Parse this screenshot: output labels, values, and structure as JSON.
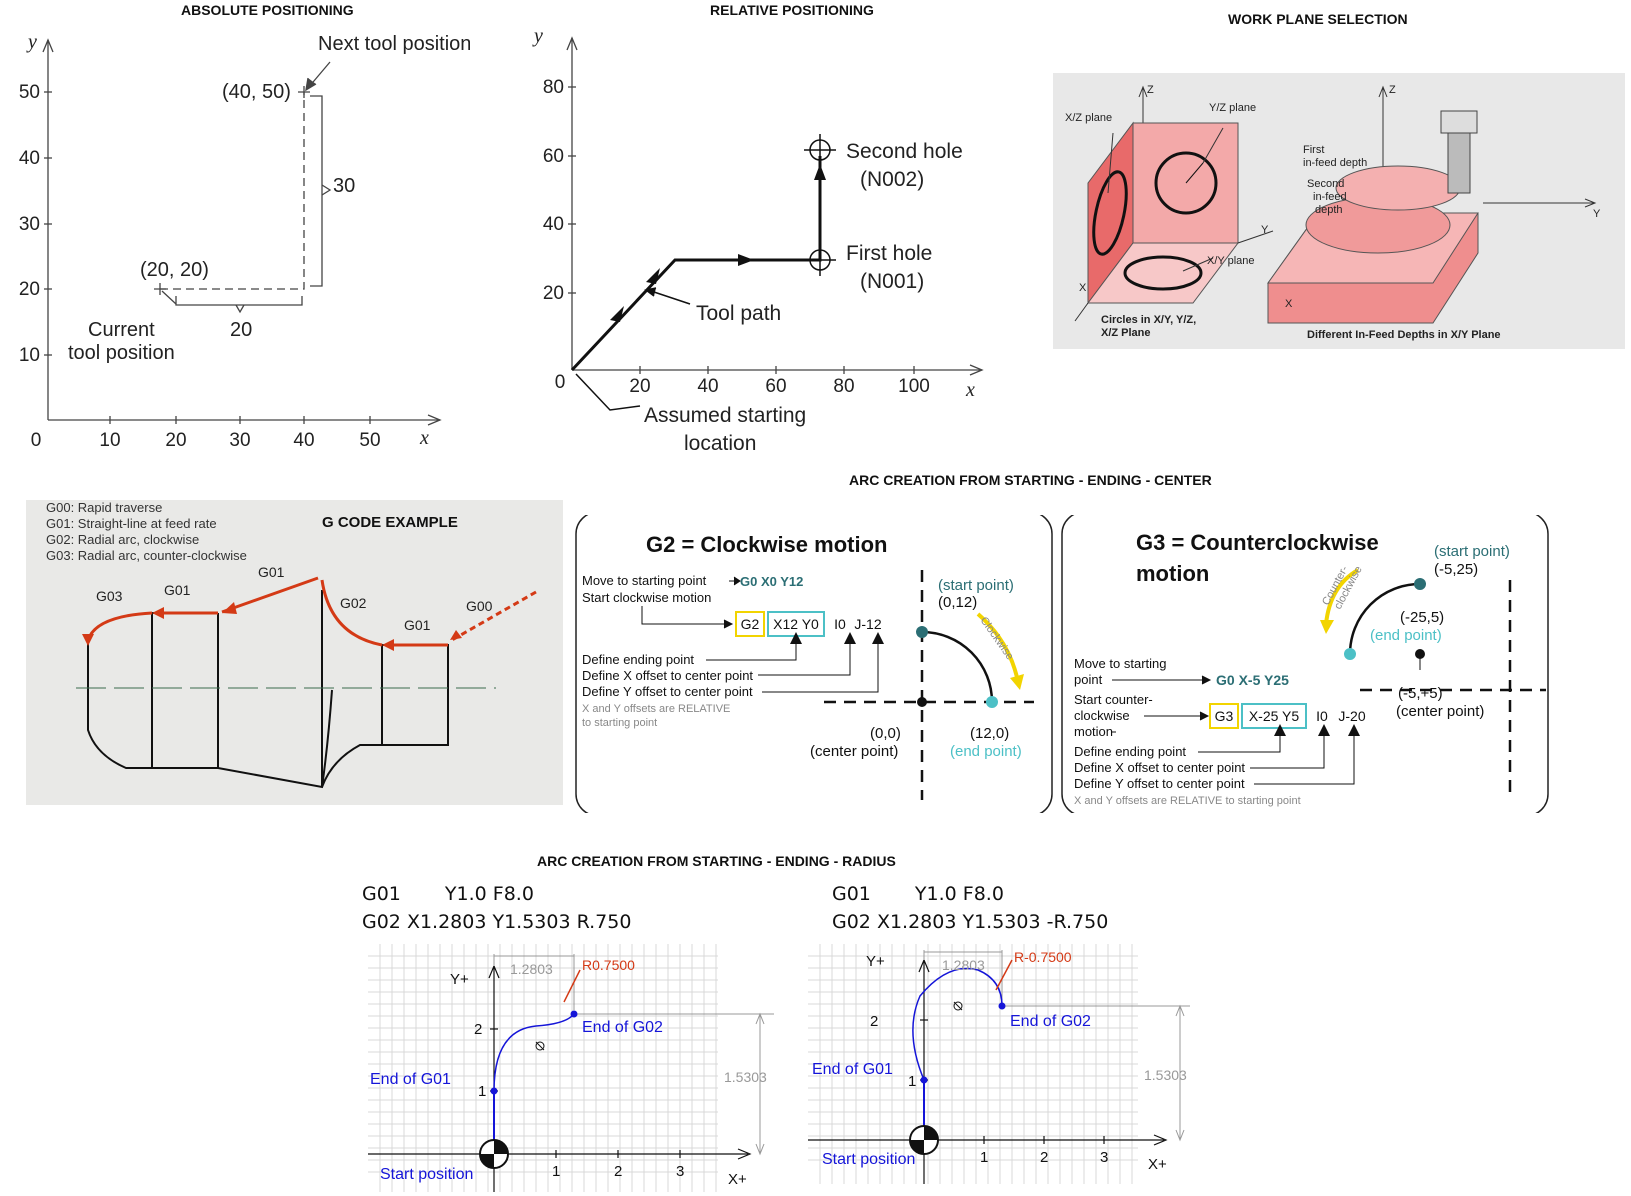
{
  "titles": {
    "absolute": "ABSOLUTE POSITIONING",
    "relative": "RELATIVE POSITIONING",
    "workplane": "WORK PLANE SELECTION",
    "gcode": "G CODE EXAMPLE",
    "arc_center": "ARC CREATION FROM STARTING - ENDING - CENTER",
    "arc_radius": "ARC CREATION FROM STARTING - ENDING - RADIUS"
  },
  "absolute": {
    "y_axis": "y",
    "x_axis": "x",
    "y_ticks": [
      "50",
      "40",
      "30",
      "20",
      "10"
    ],
    "x_ticks": [
      "0",
      "10",
      "20",
      "30",
      "40",
      "50"
    ],
    "next_label": "Next tool position",
    "next_coord": "(40, 50)",
    "current_coord": "(20, 20)",
    "current_label_1": "Current",
    "current_label_2": "tool position",
    "dim_30": "30",
    "dim_20": "20"
  },
  "relative": {
    "y_axis": "y",
    "x_axis": "x",
    "y_ticks": [
      "80",
      "60",
      "40",
      "20"
    ],
    "x_ticks": [
      "0",
      "20",
      "40",
      "60",
      "80",
      "100"
    ],
    "second_hole_1": "Second hole",
    "second_hole_2": "(N002)",
    "first_hole_1": "First hole",
    "first_hole_2": "(N001)",
    "tool_path": "Tool path",
    "start_1": "Assumed starting",
    "start_2": "location"
  },
  "workplane": {
    "z1": "Z",
    "z2": "Z",
    "xz": "X/Z plane",
    "yz": "Y/Z plane",
    "xy": "X/Y plane",
    "y1": "Y",
    "x1": "X",
    "y2": "Y",
    "x2": "X",
    "first_1": "First",
    "first_2": "in-feed depth",
    "second_1": "Second",
    "second_2": "in-feed",
    "second_3": "depth",
    "cap1_1": "Circles in X/Y, Y/Z,",
    "cap1_2": "X/Z Plane",
    "cap2": "Different In-Feed Depths in X/Y Plane"
  },
  "gcode": {
    "legend": [
      "G00: Rapid traverse",
      "G01: Straight-line at feed rate",
      "G02: Radial arc, clockwise",
      "G03: Radial arc, counter-clockwise"
    ],
    "labels": {
      "g03": "G03",
      "g01a": "G01",
      "g01b": "G01",
      "g02": "G02",
      "g01c": "G01",
      "g00": "G00"
    }
  },
  "g2": {
    "heading": "G2 = Clockwise motion",
    "move": "Move to starting point",
    "move_code": "G0 X0 Y12",
    "start": "Start clockwise motion",
    "code": [
      "G2",
      "X12 Y0",
      "I0",
      "J-12"
    ],
    "define_end": "Define ending point",
    "define_x": "Define X offset to center point",
    "define_y": "Define Y offset to center point",
    "note_1": "X and Y offsets are RELATIVE",
    "note_2": "to starting point",
    "start_pt": "(start point)",
    "start_xy": "(0,12)",
    "clockwise": "Clockwise",
    "center_xy": "(0,0)",
    "center_pt": "(center point)",
    "end_xy": "(12,0)",
    "end_pt": "(end point)"
  },
  "g3": {
    "heading_1": "G3 = Counterclockwise",
    "heading_2": "motion",
    "move_1": "Move to starting",
    "move_2": "point",
    "move_code": "G0 X-5 Y25",
    "start_1": "Start counter-",
    "start_2": "clockwise",
    "start_3": "motion",
    "code": [
      "G3",
      "X-25 Y5",
      "I0",
      "J-20"
    ],
    "define_end": "Define ending point",
    "define_x": "Define X offset to center point",
    "define_y": "Define Y offset to center point",
    "note": "X and Y offsets are RELATIVE to starting point",
    "start_pt": "(start point)",
    "start_xy": "(-5,25)",
    "ccw_1": "Counter-",
    "ccw_2": "clockwise",
    "end_xy": "(-25,5)",
    "end_pt": "(end point)",
    "center_xy": "(-5,+5)",
    "center_pt": "(center point)"
  },
  "radius_left": {
    "line1_a": "G01",
    "line1_b": "Y1.0 F8.0",
    "line2": "G02 X1.2803 Y1.5303 R.750",
    "dim_x": "1.2803",
    "dim_y": "1.5303",
    "r_label": "R0.7500",
    "y_axis": "Y+",
    "x_axis": "X+",
    "y_ticks": [
      "2",
      "1"
    ],
    "x_ticks": [
      "1",
      "2",
      "3"
    ],
    "end_g02": "End of G02",
    "end_g01": "End of G01",
    "start": "Start position"
  },
  "radius_right": {
    "line1_a": "G01",
    "line1_b": "Y1.0 F8.0",
    "line2": "G02 X1.2803 Y1.5303 -R.750",
    "dim_x": "1.2803",
    "dim_y": "1.5303",
    "r_label": "R-0.7500",
    "y_axis": "Y+",
    "x_axis": "X+",
    "y_ticks": [
      "2",
      "1"
    ],
    "x_ticks": [
      "1",
      "2",
      "3"
    ],
    "end_g02": "End of G02",
    "end_g01": "End of G01",
    "start": "Start position"
  },
  "colors": {
    "red": "#d43a16",
    "blue": "#1515d8",
    "teal": "#2b6e74",
    "cyan": "#4cc0c6",
    "yellow": "#f2d400",
    "pink": "#f2b3b3"
  }
}
